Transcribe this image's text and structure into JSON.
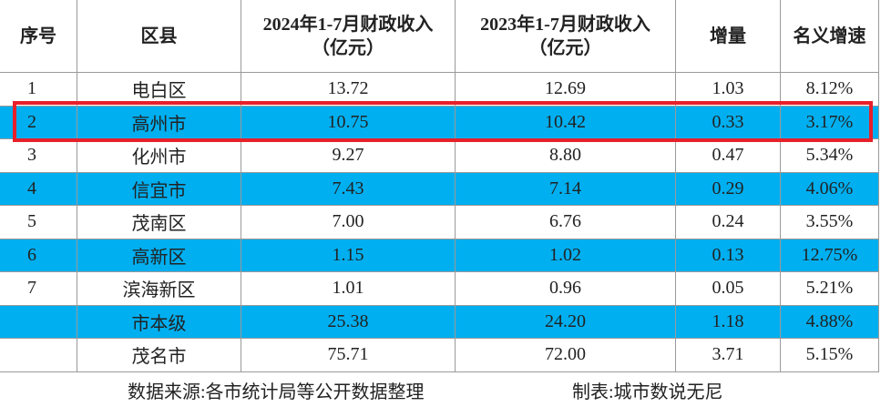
{
  "table": {
    "header": [
      [
        "序号"
      ],
      [
        "区县"
      ],
      [
        "2024年1-7月财政收入",
        "（亿元）"
      ],
      [
        "2023年1-7月财政收入",
        "（亿元）"
      ],
      [
        "增量"
      ],
      [
        "名义增速"
      ]
    ],
    "rows": [
      [
        "1",
        "电白区",
        "13.72",
        "12.69",
        "1.03",
        "8.12%"
      ],
      [
        "2",
        "高州市",
        "10.75",
        "10.42",
        "0.33",
        "3.17%"
      ],
      [
        "3",
        "化州市",
        "9.27",
        "8.80",
        "0.47",
        "5.34%"
      ],
      [
        "4",
        "信宜市",
        "7.43",
        "7.14",
        "0.29",
        "4.06%"
      ],
      [
        "5",
        "茂南区",
        "7.00",
        "6.76",
        "0.24",
        "3.55%"
      ],
      [
        "6",
        "高新区",
        "1.15",
        "1.02",
        "0.13",
        "12.75%"
      ],
      [
        "7",
        "滨海新区",
        "1.01",
        "0.96",
        "0.05",
        "5.21%"
      ],
      [
        null,
        "市本级",
        "25.38",
        "24.20",
        "1.18",
        "4.88%"
      ],
      [
        null,
        "茂名市",
        "75.71",
        "72.00",
        "3.71",
        "5.15%"
      ]
    ],
    "footer": {
      "source": "数据来源:各市统计局等公开数据整理",
      "author": "制表:城市数说无尼"
    }
  }
}
